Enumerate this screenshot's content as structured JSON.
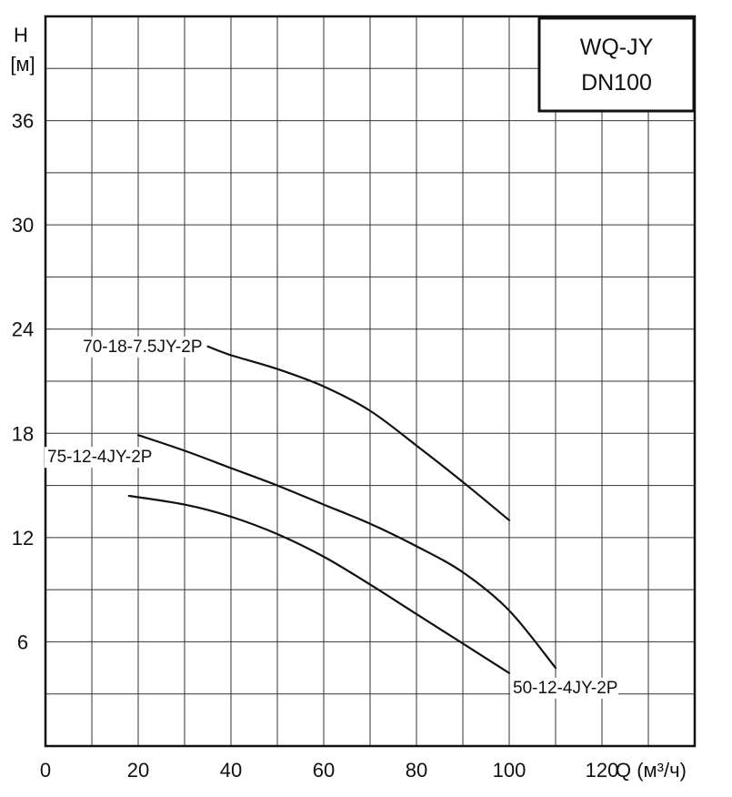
{
  "chart_data": {
    "type": "line",
    "title_lines": [
      "WQ-JY",
      "DN100"
    ],
    "y_unit_lines": [
      "H",
      "[м]"
    ],
    "x_unit": "Q (м³/ч)",
    "xlim": [
      0,
      140
    ],
    "ylim": [
      0,
      42
    ],
    "x_ticks": [
      {
        "value": 0,
        "label": "0"
      },
      {
        "value": 20,
        "label": "20"
      },
      {
        "value": 40,
        "label": "40"
      },
      {
        "value": 60,
        "label": "60"
      },
      {
        "value": 80,
        "label": "80"
      },
      {
        "value": 100,
        "label": "100"
      },
      {
        "value": 120,
        "label": "120"
      }
    ],
    "y_ticks": [
      {
        "value": 6,
        "label": "6"
      },
      {
        "value": 12,
        "label": "12"
      },
      {
        "value": 18,
        "label": "18"
      },
      {
        "value": 24,
        "label": "24"
      },
      {
        "value": 30,
        "label": "30"
      },
      {
        "value": 36,
        "label": "36"
      }
    ],
    "grid": true,
    "grid_x_step": 10,
    "grid_y_step": 3,
    "series": [
      {
        "name": "70-18-7.5JY-2P",
        "label_anchor": "start",
        "x": [
          35,
          40,
          50,
          60,
          70,
          80,
          90,
          100
        ],
        "y": [
          23.0,
          22.5,
          21.7,
          20.7,
          19.3,
          17.3,
          15.2,
          13.0
        ]
      },
      {
        "name": "75-12-4JY-2P",
        "label_anchor": "start",
        "x": [
          20,
          30,
          40,
          50,
          60,
          70,
          80,
          90,
          100,
          110
        ],
        "y": [
          17.9,
          17.0,
          16.0,
          15.0,
          13.9,
          12.8,
          11.5,
          10.0,
          7.8,
          4.5
        ]
      },
      {
        "name": "50-12-4JY-2P",
        "label_anchor": "end",
        "x": [
          18,
          30,
          40,
          50,
          60,
          70,
          80,
          90,
          100
        ],
        "y": [
          14.4,
          13.9,
          13.2,
          12.2,
          10.9,
          9.3,
          7.6,
          5.9,
          4.2
        ]
      }
    ],
    "line_color": "#111111",
    "grid_color": "#333333"
  }
}
